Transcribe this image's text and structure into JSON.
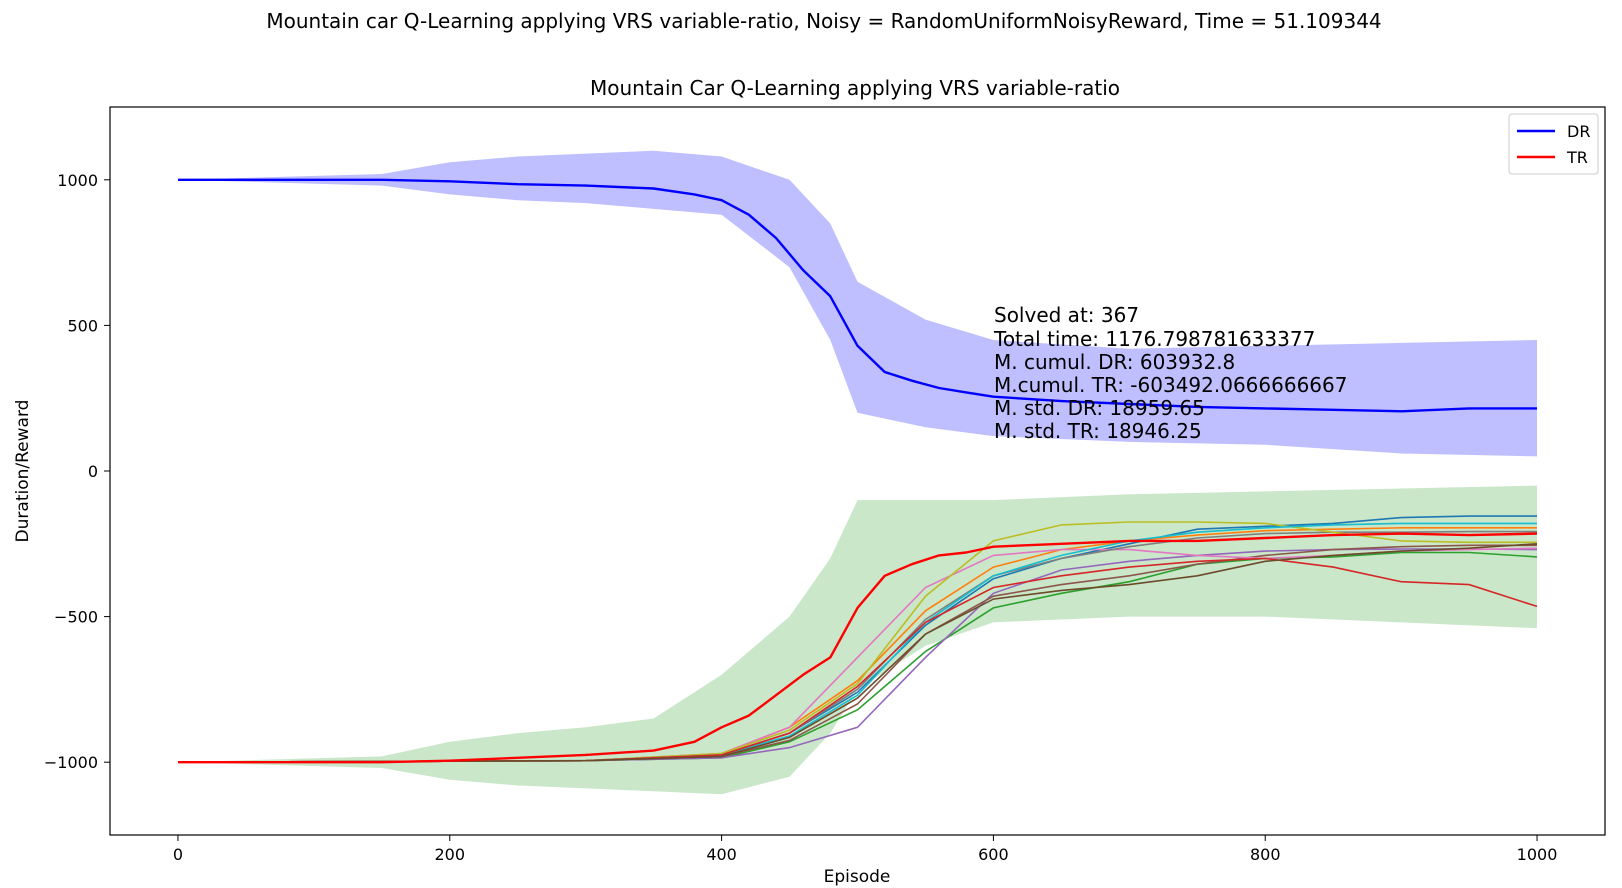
{
  "chart_data": {
    "type": "line",
    "suptitle": "Mountain car Q-Learning applying VRS variable-ratio, Noisy = RandomUniformNoisyReward, Time = 51.109344",
    "title": "Mountain Car Q-Learning applying VRS variable-ratio",
    "xlabel": "Episode",
    "ylabel": "Duration/Reward",
    "xlim": [
      -50,
      1050
    ],
    "ylim": [
      -1250,
      1250
    ],
    "xticks": [
      0,
      200,
      400,
      600,
      800,
      1000
    ],
    "yticks": [
      -1000,
      -500,
      0,
      500,
      1000
    ],
    "xtick_labels": [
      "0",
      "200",
      "400",
      "600",
      "800",
      "1000"
    ],
    "ytick_labels": [
      "−1000",
      "−500",
      "0",
      "500",
      "1000"
    ],
    "legend_position": "top-right",
    "legend": [
      {
        "label": "DR",
        "color": "#0000ff"
      },
      {
        "label": "TR",
        "color": "#ff0000"
      }
    ],
    "annotation": [
      "Solved at: 367",
      "Total time: 1176.798781633377",
      "M. cumul. DR: 603932.8",
      "M.cumul. TR: -603492.0666666667",
      "M. std. DR: 18959.65",
      "M. std. TR: 18946.25"
    ],
    "series": [
      {
        "name": "DR",
        "color": "#0000ff",
        "x": [
          0,
          50,
          100,
          150,
          200,
          250,
          300,
          350,
          380,
          400,
          420,
          440,
          460,
          480,
          500,
          520,
          540,
          560,
          580,
          600,
          650,
          700,
          750,
          800,
          850,
          900,
          950,
          1000
        ],
        "y": [
          1000,
          1000,
          1000,
          1000,
          995,
          985,
          980,
          970,
          950,
          930,
          880,
          800,
          690,
          600,
          430,
          340,
          310,
          285,
          270,
          255,
          240,
          230,
          220,
          215,
          210,
          205,
          215,
          215
        ]
      },
      {
        "name": "TR",
        "color": "#ff0000",
        "x": [
          0,
          50,
          100,
          150,
          200,
          250,
          300,
          350,
          380,
          400,
          420,
          440,
          460,
          480,
          500,
          520,
          540,
          560,
          580,
          600,
          650,
          700,
          750,
          800,
          850,
          900,
          950,
          1000
        ],
        "y": [
          -1000,
          -1000,
          -1000,
          -1000,
          -995,
          -985,
          -975,
          -960,
          -930,
          -880,
          -840,
          -770,
          -700,
          -640,
          -470,
          -360,
          -320,
          -290,
          -280,
          -260,
          -250,
          -240,
          -240,
          -230,
          -220,
          -215,
          -220,
          -215
        ]
      }
    ],
    "dr_band": {
      "color": "#0000ff",
      "opacity": 0.25,
      "x": [
        0,
        150,
        200,
        250,
        300,
        350,
        400,
        450,
        480,
        500,
        550,
        600,
        700,
        800,
        900,
        1000
      ],
      "upper": [
        1000,
        1020,
        1060,
        1080,
        1090,
        1100,
        1080,
        1000,
        850,
        650,
        520,
        450,
        420,
        430,
        440,
        450
      ],
      "lower": [
        1000,
        980,
        950,
        930,
        920,
        900,
        880,
        700,
        450,
        200,
        150,
        120,
        100,
        90,
        60,
        50
      ]
    },
    "tr_band": {
      "color": "#2ca02c",
      "opacity": 0.25,
      "x": [
        0,
        150,
        200,
        250,
        300,
        350,
        400,
        450,
        480,
        500,
        550,
        600,
        700,
        800,
        900,
        1000
      ],
      "upper": [
        -1000,
        -980,
        -930,
        -900,
        -880,
        -850,
        -700,
        -500,
        -300,
        -100,
        -100,
        -100,
        -80,
        -70,
        -60,
        -50
      ],
      "lower": [
        -1000,
        -1020,
        -1060,
        -1080,
        -1090,
        -1100,
        -1110,
        -1050,
        -900,
        -750,
        -600,
        -520,
        -500,
        -500,
        -520,
        -540
      ]
    },
    "curves": [
      {
        "color": "#1f77b4",
        "x": [
          0,
          300,
          400,
          450,
          500,
          550,
          600,
          650,
          700,
          750,
          800,
          850,
          900,
          950,
          1000
        ],
        "y": [
          -1000,
          -995,
          -975,
          -900,
          -760,
          -530,
          -370,
          -300,
          -250,
          -200,
          -190,
          -180,
          -160,
          -155,
          -155
        ]
      },
      {
        "color": "#ff7f0e",
        "x": [
          0,
          300,
          400,
          450,
          500,
          550,
          600,
          650,
          700,
          750,
          800,
          850,
          900,
          950,
          1000
        ],
        "y": [
          -1000,
          -995,
          -970,
          -880,
          -720,
          -480,
          -330,
          -270,
          -240,
          -220,
          -205,
          -200,
          -195,
          -195,
          -195
        ]
      },
      {
        "color": "#2ca02c",
        "x": [
          0,
          300,
          400,
          450,
          500,
          550,
          600,
          650,
          700,
          750,
          800,
          850,
          900,
          950,
          1000
        ],
        "y": [
          -1000,
          -995,
          -985,
          -930,
          -820,
          -620,
          -470,
          -420,
          -380,
          -320,
          -300,
          -295,
          -280,
          -280,
          -295
        ]
      },
      {
        "color": "#9467bd",
        "x": [
          0,
          300,
          400,
          450,
          500,
          550,
          600,
          650,
          700,
          750,
          800,
          850,
          900,
          950,
          1000
        ],
        "y": [
          -1000,
          -995,
          -985,
          -950,
          -880,
          -640,
          -420,
          -340,
          -310,
          -290,
          -275,
          -270,
          -268,
          -268,
          -270
        ]
      },
      {
        "color": "#8c564b",
        "x": [
          0,
          300,
          400,
          450,
          500,
          550,
          600,
          650,
          700,
          750,
          800,
          850,
          900,
          950,
          1000
        ],
        "y": [
          -1000,
          -995,
          -980,
          -925,
          -800,
          -560,
          -430,
          -390,
          -360,
          -320,
          -290,
          -270,
          -260,
          -255,
          -255
        ]
      },
      {
        "color": "#e377c2",
        "x": [
          0,
          300,
          400,
          450,
          500,
          550,
          600,
          650,
          700,
          750,
          800,
          850,
          900,
          950,
          1000
        ],
        "y": [
          -1000,
          -995,
          -970,
          -880,
          -640,
          -400,
          -290,
          -270,
          -270,
          -290,
          -300,
          -290,
          -275,
          -270,
          -265
        ]
      },
      {
        "color": "#7f7f7f",
        "x": [
          0,
          300,
          400,
          450,
          500,
          550,
          600,
          650,
          700,
          750,
          800,
          850,
          900,
          950,
          1000
        ],
        "y": [
          -1000,
          -995,
          -975,
          -900,
          -750,
          -510,
          -360,
          -300,
          -260,
          -230,
          -215,
          -210,
          -210,
          -208,
          -208
        ]
      },
      {
        "color": "#bcbd22",
        "x": [
          0,
          300,
          400,
          450,
          500,
          550,
          600,
          650,
          700,
          750,
          800,
          850,
          900,
          950,
          1000
        ],
        "y": [
          -1000,
          -995,
          -970,
          -890,
          -730,
          -430,
          -240,
          -185,
          -175,
          -175,
          -180,
          -210,
          -240,
          -245,
          -245
        ]
      },
      {
        "color": "#17becf",
        "x": [
          0,
          300,
          400,
          450,
          500,
          550,
          600,
          650,
          700,
          750,
          800,
          850,
          900,
          950,
          1000
        ],
        "y": [
          -1000,
          -995,
          -975,
          -910,
          -770,
          -520,
          -360,
          -290,
          -240,
          -210,
          -195,
          -185,
          -180,
          -180,
          -180
        ]
      },
      {
        "color": "#d62728",
        "x": [
          0,
          300,
          400,
          450,
          500,
          550,
          600,
          650,
          700,
          750,
          800,
          850,
          900,
          950,
          1000
        ],
        "y": [
          -1000,
          -995,
          -975,
          -900,
          -740,
          -520,
          -400,
          -360,
          -330,
          -310,
          -300,
          -330,
          -380,
          -390,
          -465
        ]
      },
      {
        "color": "#6b4c2a",
        "x": [
          0,
          300,
          400,
          450,
          500,
          550,
          600,
          650,
          700,
          750,
          800,
          850,
          900,
          950,
          1000
        ],
        "y": [
          -1000,
          -995,
          -980,
          -915,
          -780,
          -560,
          -440,
          -410,
          -390,
          -360,
          -310,
          -290,
          -275,
          -265,
          -250
        ]
      }
    ]
  }
}
